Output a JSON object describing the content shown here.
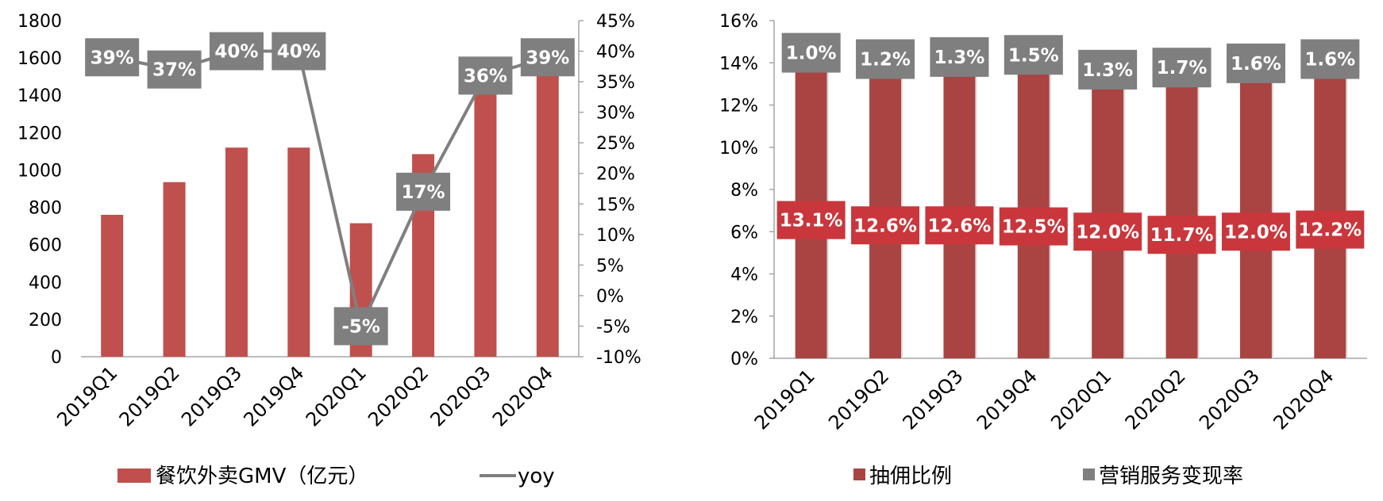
{
  "colors": {
    "gmv_bar": "#c0504d",
    "yoy_line": "#7f7f7f",
    "yoy_label_bg": "#7f7f7f",
    "commission_bar": "#a94442",
    "commission_label_bg": "#c9373c",
    "marketing_label_bg": "#7f7f7f",
    "axis": "#a6a6a6"
  },
  "chart_data": [
    {
      "type": "bar",
      "categories": [
        "2019Q1",
        "2019Q2",
        "2019Q3",
        "2019Q4",
        "2020Q1",
        "2020Q2",
        "2020Q3",
        "2020Q4"
      ],
      "series": [
        {
          "name": "餐饮外卖GMV（亿元）",
          "type": "bar",
          "axis": "left",
          "values": [
            760,
            935,
            1120,
            1120,
            715,
            1085,
            1460,
            1590
          ]
        },
        {
          "name": "yoy",
          "type": "line",
          "axis": "right",
          "values": [
            39,
            37,
            40,
            40,
            -5,
            17,
            36,
            39
          ],
          "labels": [
            "39%",
            "37%",
            "40%",
            "40%",
            "-5%",
            "17%",
            "36%",
            "39%"
          ]
        }
      ],
      "yaxis_left": {
        "min": 0,
        "max": 1800,
        "step": 200,
        "ticks": [
          "0",
          "200",
          "400",
          "600",
          "800",
          "1000",
          "1200",
          "1400",
          "1600",
          "1800"
        ]
      },
      "yaxis_right": {
        "min": -10,
        "max": 45,
        "step": 5,
        "ticks": [
          "-10%",
          "-5%",
          "0%",
          "5%",
          "10%",
          "15%",
          "20%",
          "25%",
          "30%",
          "35%",
          "40%",
          "45%"
        ]
      },
      "legend": {
        "position": "bottom",
        "items": [
          "餐饮外卖GMV（亿元）",
          "yoy"
        ]
      },
      "grid": false
    },
    {
      "type": "bar",
      "stacked": true,
      "categories": [
        "2019Q1",
        "2019Q2",
        "2019Q3",
        "2019Q4",
        "2020Q1",
        "2020Q2",
        "2020Q3",
        "2020Q4"
      ],
      "series": [
        {
          "name": "抽佣比例",
          "values": [
            13.1,
            12.6,
            12.6,
            12.5,
            12.0,
            11.7,
            12.0,
            12.2
          ],
          "labels": [
            "13.1%",
            "12.6%",
            "12.6%",
            "12.5%",
            "12.0%",
            "11.7%",
            "12.0%",
            "12.2%"
          ]
        },
        {
          "name": "营销服务变现率",
          "values": [
            1.0,
            1.2,
            1.3,
            1.5,
            1.3,
            1.7,
            1.6,
            1.6
          ],
          "labels": [
            "1.0%",
            "1.2%",
            "1.3%",
            "1.5%",
            "1.3%",
            "1.7%",
            "1.6%",
            "1.6%"
          ]
        }
      ],
      "yaxis": {
        "min": 0,
        "max": 16,
        "step": 2,
        "ticks": [
          "0%",
          "2%",
          "4%",
          "6%",
          "8%",
          "10%",
          "12%",
          "14%",
          "16%"
        ]
      },
      "legend": {
        "position": "bottom",
        "items": [
          "抽佣比例",
          "营销服务变现率"
        ]
      },
      "grid": false
    }
  ]
}
